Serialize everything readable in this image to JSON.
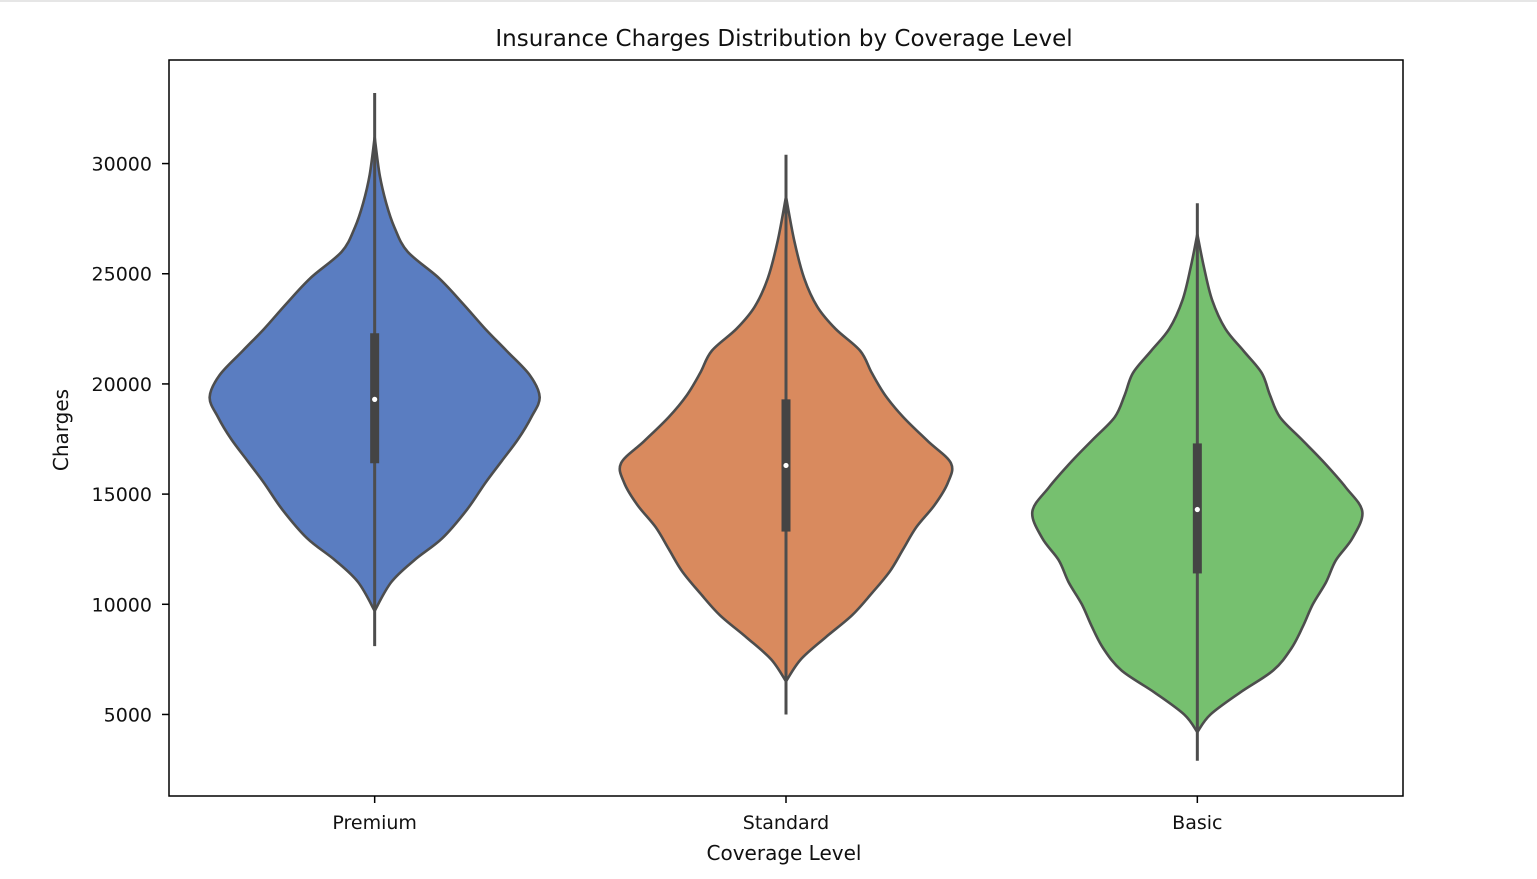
{
  "chart_data": {
    "type": "violin",
    "title": "Insurance Charges Distribution by Coverage Level",
    "xlabel": "Coverage Level",
    "ylabel": "Charges",
    "ylim": [
      1300,
      34700
    ],
    "yticks": [
      5000,
      10000,
      15000,
      20000,
      25000,
      30000
    ],
    "grid": false,
    "categories": [
      "Premium",
      "Standard",
      "Basic"
    ],
    "series": [
      {
        "category": "Premium",
        "color": "#5a7dc1",
        "median": 19300,
        "q1": 16400,
        "q3": 22300,
        "whisker_min": 8100,
        "whisker_max": 33200,
        "kde_min": 9700,
        "kde_max": 31200,
        "density_profile": [
          [
            9700,
            0.0
          ],
          [
            11000,
            0.1
          ],
          [
            12000,
            0.24
          ],
          [
            13000,
            0.41
          ],
          [
            14300,
            0.56
          ],
          [
            15500,
            0.67
          ],
          [
            16500,
            0.77
          ],
          [
            17500,
            0.87
          ],
          [
            18500,
            0.95
          ],
          [
            19400,
            1.0
          ],
          [
            20400,
            0.94
          ],
          [
            21500,
            0.8
          ],
          [
            22500,
            0.67
          ],
          [
            23600,
            0.54
          ],
          [
            24800,
            0.39
          ],
          [
            26000,
            0.2
          ],
          [
            27100,
            0.12
          ],
          [
            28200,
            0.07
          ],
          [
            29500,
            0.03
          ],
          [
            31200,
            0.0
          ]
        ]
      },
      {
        "category": "Standard",
        "color": "#d98a5e",
        "median": 16300,
        "q1": 13300,
        "q3": 19300,
        "whisker_min": 5000,
        "whisker_max": 30400,
        "kde_min": 6500,
        "kde_max": 28500,
        "density_profile": [
          [
            6500,
            0.0
          ],
          [
            7500,
            0.09
          ],
          [
            8500,
            0.24
          ],
          [
            9500,
            0.4
          ],
          [
            10500,
            0.52
          ],
          [
            11500,
            0.63
          ],
          [
            12500,
            0.71
          ],
          [
            13500,
            0.79
          ],
          [
            14500,
            0.9
          ],
          [
            15500,
            0.98
          ],
          [
            16400,
            1.0
          ],
          [
            17400,
            0.86
          ],
          [
            18500,
            0.71
          ],
          [
            19500,
            0.6
          ],
          [
            20500,
            0.52
          ],
          [
            21500,
            0.45
          ],
          [
            22500,
            0.3
          ],
          [
            23500,
            0.19
          ],
          [
            24800,
            0.11
          ],
          [
            26500,
            0.05
          ],
          [
            28500,
            0.0
          ]
        ]
      },
      {
        "category": "Basic",
        "color": "#76c06f",
        "median": 14300,
        "q1": 11400,
        "q3": 17300,
        "whisker_min": 2900,
        "whisker_max": 28200,
        "kde_min": 4200,
        "kde_max": 26800,
        "density_profile": [
          [
            4200,
            0.0
          ],
          [
            5000,
            0.08
          ],
          [
            6000,
            0.26
          ],
          [
            7000,
            0.46
          ],
          [
            8000,
            0.57
          ],
          [
            9000,
            0.64
          ],
          [
            10000,
            0.7
          ],
          [
            11000,
            0.78
          ],
          [
            12000,
            0.84
          ],
          [
            13000,
            0.94
          ],
          [
            14200,
            1.0
          ],
          [
            15300,
            0.9
          ],
          [
            16500,
            0.76
          ],
          [
            17500,
            0.63
          ],
          [
            18500,
            0.5
          ],
          [
            19500,
            0.44
          ],
          [
            20500,
            0.39
          ],
          [
            21500,
            0.28
          ],
          [
            22500,
            0.17
          ],
          [
            23800,
            0.09
          ],
          [
            25300,
            0.04
          ],
          [
            26800,
            0.0
          ]
        ]
      }
    ]
  },
  "style": {
    "line_color": "#4d4d4d",
    "box_color": "#444444",
    "median_dot": "#ffffff",
    "axes_color": "#000000"
  }
}
